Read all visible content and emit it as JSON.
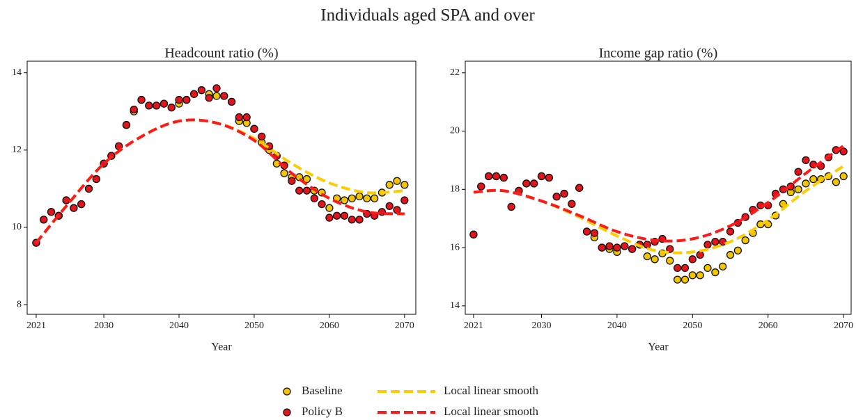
{
  "title": "Individuals aged SPA and over",
  "legend_position": "bottom",
  "chart_data": [
    {
      "type": "scatter",
      "title": "Headcount ratio (%)",
      "xlabel": "Year",
      "x": [
        2021,
        2022,
        2023,
        2024,
        2025,
        2026,
        2027,
        2028,
        2029,
        2030,
        2031,
        2032,
        2033,
        2034,
        2035,
        2036,
        2037,
        2038,
        2039,
        2040,
        2041,
        2042,
        2043,
        2044,
        2045,
        2046,
        2047,
        2048,
        2049,
        2050,
        2051,
        2052,
        2053,
        2054,
        2055,
        2056,
        2057,
        2058,
        2059,
        2060,
        2061,
        2062,
        2063,
        2064,
        2065,
        2066,
        2067,
        2068,
        2069,
        2070
      ],
      "xlim": [
        2019.8,
        2071.5
      ],
      "xticks": [
        2021,
        2030,
        2040,
        2050,
        2060,
        2070
      ],
      "ylim": [
        7.75,
        14.3
      ],
      "yticks": [
        8,
        10,
        12,
        14
      ],
      "series": [
        {
          "name": "Baseline",
          "color": "#f2c500",
          "style": "points",
          "values": [
            9.6,
            10.2,
            10.4,
            10.3,
            10.7,
            10.5,
            10.6,
            11.0,
            11.25,
            11.65,
            11.85,
            12.1,
            12.65,
            13.0,
            13.3,
            13.15,
            13.15,
            13.2,
            13.1,
            13.2,
            13.3,
            13.45,
            13.55,
            13.45,
            13.4,
            13.4,
            13.25,
            12.75,
            12.7,
            12.55,
            12.2,
            12.0,
            11.65,
            11.4,
            11.3,
            11.3,
            11.25,
            10.95,
            10.9,
            10.5,
            10.75,
            10.7,
            10.75,
            10.8,
            10.75,
            10.75,
            10.9,
            11.1,
            11.2,
            11.1
          ]
        },
        {
          "name": "Policy B",
          "color": "#e3141b",
          "style": "points",
          "values": [
            9.6,
            10.2,
            10.4,
            10.3,
            10.7,
            10.5,
            10.6,
            11.0,
            11.25,
            11.65,
            11.85,
            12.1,
            12.65,
            13.05,
            13.3,
            13.15,
            13.15,
            13.2,
            13.1,
            13.3,
            13.3,
            13.45,
            13.55,
            13.35,
            13.6,
            13.4,
            13.25,
            12.85,
            12.85,
            12.55,
            12.35,
            12.1,
            11.85,
            11.6,
            11.2,
            10.95,
            10.95,
            10.75,
            10.6,
            10.25,
            10.3,
            10.3,
            10.2,
            10.2,
            10.35,
            10.3,
            10.4,
            10.55,
            10.45,
            10.7
          ]
        },
        {
          "name": "Local linear smooth",
          "color": "#ffcc00",
          "style": "dashed",
          "x": [
            2021,
            2025,
            2030,
            2035,
            2040,
            2045,
            2050,
            2055,
            2060,
            2065,
            2070
          ],
          "values": [
            9.6,
            10.55,
            11.65,
            12.35,
            12.75,
            12.7,
            12.3,
            11.65,
            11.15,
            10.9,
            10.95
          ]
        },
        {
          "name": "Local linear smooth",
          "color": "#ff1a1a",
          "style": "dashed",
          "x": [
            2021,
            2025,
            2030,
            2035,
            2040,
            2045,
            2050,
            2055,
            2060,
            2065,
            2070
          ],
          "values": [
            9.6,
            10.55,
            11.65,
            12.35,
            12.75,
            12.7,
            12.25,
            11.4,
            10.75,
            10.4,
            10.35
          ]
        }
      ]
    },
    {
      "type": "scatter",
      "title": "Income gap ratio (%)",
      "xlabel": "Year",
      "x": [
        2021,
        2022,
        2023,
        2024,
        2025,
        2026,
        2027,
        2028,
        2029,
        2030,
        2031,
        2032,
        2033,
        2034,
        2035,
        2036,
        2037,
        2038,
        2039,
        2040,
        2041,
        2042,
        2043,
        2044,
        2045,
        2046,
        2047,
        2048,
        2049,
        2050,
        2051,
        2052,
        2053,
        2054,
        2055,
        2056,
        2057,
        2058,
        2059,
        2060,
        2061,
        2062,
        2063,
        2064,
        2065,
        2066,
        2067,
        2068,
        2069,
        2070
      ],
      "xlim": [
        2019.9,
        2071.0
      ],
      "xticks": [
        2021,
        2030,
        2040,
        2050,
        2060,
        2070
      ],
      "ylim": [
        13.71,
        22.4
      ],
      "yticks": [
        14,
        16,
        18,
        20,
        22
      ],
      "series": [
        {
          "name": "Baseline",
          "color": "#f2c500",
          "style": "points",
          "values": [
            16.45,
            18.1,
            18.45,
            18.45,
            18.4,
            17.4,
            17.95,
            18.2,
            18.2,
            18.45,
            18.4,
            17.75,
            17.85,
            17.5,
            18.05,
            16.55,
            16.35,
            16.0,
            15.95,
            15.85,
            16.05,
            15.95,
            16.1,
            15.7,
            15.6,
            15.8,
            15.55,
            14.9,
            14.9,
            15.05,
            15.05,
            15.3,
            15.15,
            15.35,
            15.75,
            15.9,
            16.25,
            16.5,
            16.8,
            16.8,
            17.1,
            17.5,
            17.9,
            18.0,
            18.2,
            18.35,
            18.35,
            18.45,
            18.25,
            18.45
          ]
        },
        {
          "name": "Policy B",
          "color": "#e3141b",
          "style": "points",
          "values": [
            16.45,
            18.1,
            18.45,
            18.45,
            18.4,
            17.4,
            17.95,
            18.2,
            18.2,
            18.45,
            18.4,
            17.75,
            17.85,
            17.5,
            18.05,
            16.55,
            16.5,
            16.0,
            16.05,
            16.0,
            16.05,
            15.95,
            16.1,
            16.1,
            16.2,
            16.3,
            15.95,
            15.3,
            15.3,
            15.6,
            15.75,
            16.1,
            16.2,
            16.2,
            16.55,
            16.85,
            17.05,
            17.3,
            17.45,
            17.45,
            17.85,
            18.0,
            18.1,
            18.6,
            19.0,
            18.85,
            18.8,
            19.1,
            19.35,
            19.3
          ]
        },
        {
          "name": "Local linear smooth",
          "color": "#ffcc00",
          "style": "dashed",
          "x": [
            2021,
            2025,
            2030,
            2035,
            2040,
            2045,
            2050,
            2055,
            2060,
            2065,
            2070
          ],
          "values": [
            17.9,
            17.95,
            17.6,
            17.05,
            16.4,
            15.9,
            15.85,
            16.2,
            16.95,
            17.95,
            18.8
          ]
        },
        {
          "name": "Local linear smooth",
          "color": "#ff1a1a",
          "style": "dashed",
          "x": [
            2021,
            2025,
            2030,
            2035,
            2040,
            2045,
            2050,
            2055,
            2060,
            2065,
            2070
          ],
          "values": [
            17.9,
            17.95,
            17.6,
            17.1,
            16.55,
            16.25,
            16.3,
            16.75,
            17.55,
            18.55,
            19.5
          ]
        }
      ]
    }
  ]
}
